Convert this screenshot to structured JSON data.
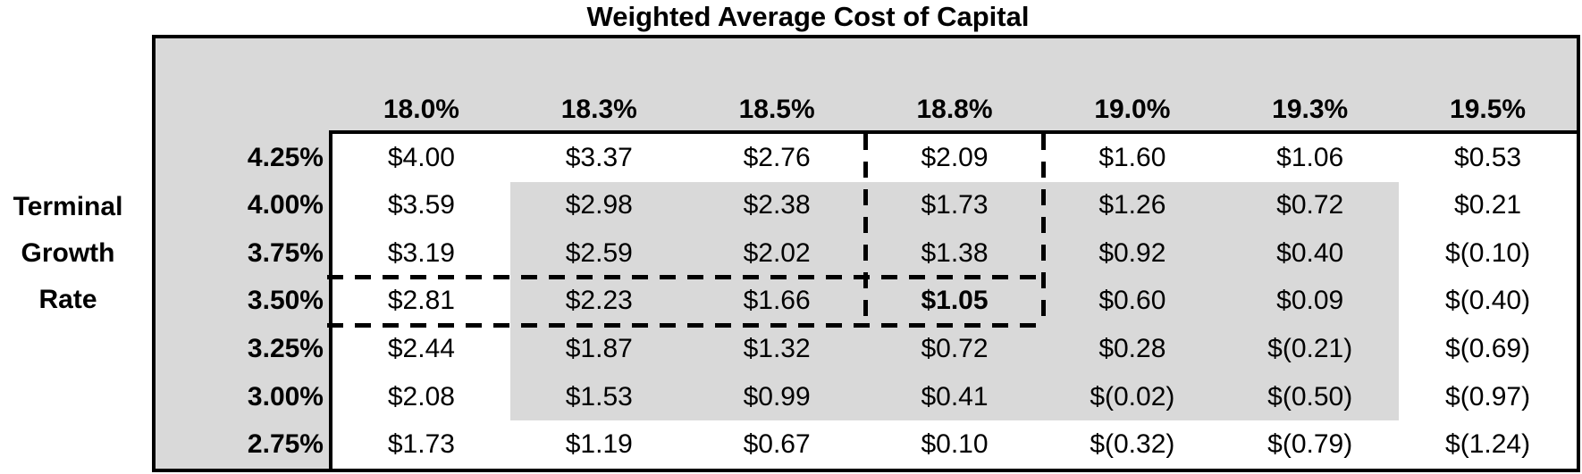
{
  "title": "Weighted Average Cost of Capital",
  "row_axis": {
    "line1": "Terminal",
    "line2": "Growth",
    "line3": "Rate"
  },
  "chart_data": {
    "type": "table",
    "title": "Weighted Average Cost of Capital",
    "column_axis_title": "Weighted Average Cost of Capital",
    "row_axis_title": "Terminal Growth Rate",
    "columns": [
      "18.0%",
      "18.3%",
      "18.5%",
      "18.8%",
      "19.0%",
      "19.3%",
      "19.5%"
    ],
    "rows": [
      "4.25%",
      "4.00%",
      "3.75%",
      "3.50%",
      "3.25%",
      "3.00%",
      "2.75%"
    ],
    "values": [
      [
        "$4.00",
        "$3.37",
        "$2.76",
        "$2.09",
        "$1.60",
        "$1.06",
        "$0.53"
      ],
      [
        "$3.59",
        "$2.98",
        "$2.38",
        "$1.73",
        "$1.26",
        "$0.72",
        "$0.21"
      ],
      [
        "$3.19",
        "$2.59",
        "$2.02",
        "$1.38",
        "$0.92",
        "$0.40",
        "$(0.10)"
      ],
      [
        "$2.81",
        "$2.23",
        "$1.66",
        "$1.05",
        "$0.60",
        "$0.09",
        "$(0.40)"
      ],
      [
        "$2.44",
        "$1.87",
        "$1.32",
        "$0.72",
        "$0.28",
        "$(0.21)",
        "$(0.69)"
      ],
      [
        "$2.08",
        "$1.53",
        "$0.99",
        "$0.41",
        "$(0.02)",
        "$(0.50)",
        "$(0.97)"
      ],
      [
        "$1.73",
        "$1.19",
        "$0.67",
        "$0.10",
        "$(0.32)",
        "$(0.79)",
        "$(1.24)"
      ]
    ],
    "base_case": {
      "row": "3.50%",
      "column": "18.8%",
      "value": "$1.05",
      "bold": true,
      "highlight_style": "dashed-border-crosshair"
    },
    "shaded_region": {
      "columns_from": "18.3%",
      "columns_to": "19.3%",
      "rows_from": "4.00%",
      "rows_to": "3.00%"
    },
    "layout_hints": {
      "grid": "off",
      "negative_format": "parentheses"
    },
    "colors": {
      "shade": "#d9d9d9",
      "border": "#000000",
      "text": "#000000",
      "background": "#ffffff"
    }
  }
}
